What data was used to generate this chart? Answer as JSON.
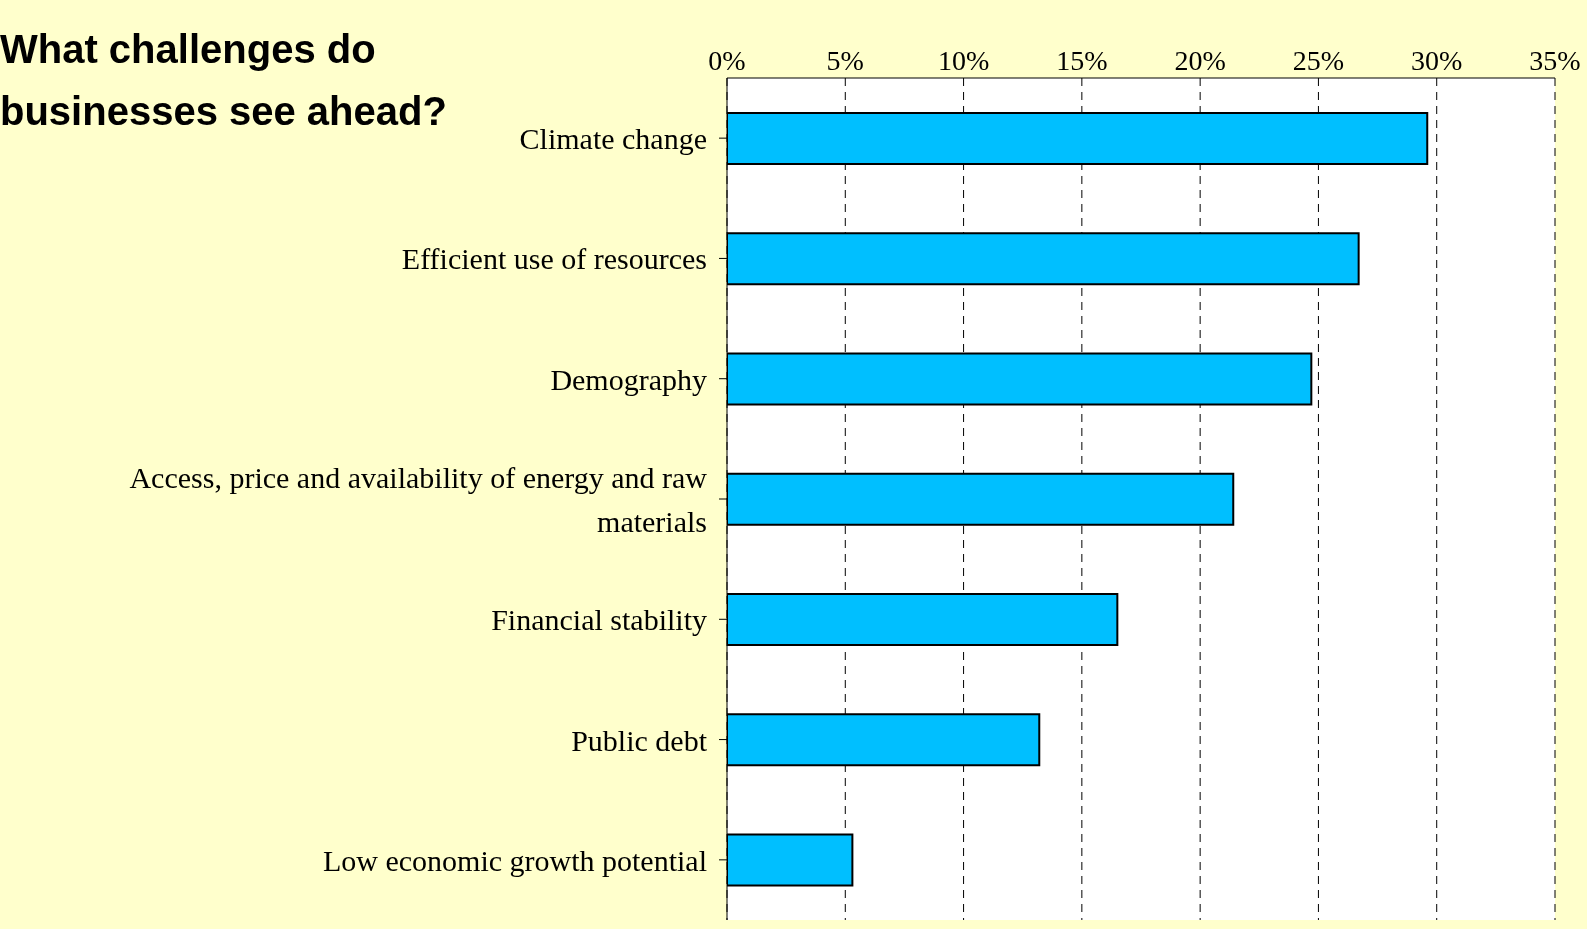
{
  "chart_data": {
    "type": "bar",
    "orientation": "horizontal",
    "title": "What challenges do businesses see ahead?",
    "categories": [
      "Climate change",
      "Efficient use of resources",
      "Demography",
      "Access, price and availability of energy and raw materials",
      "Financial stability",
      "Public debt",
      "Low economic growth potential"
    ],
    "values": [
      29.6,
      26.7,
      24.7,
      21.4,
      16.5,
      13.2,
      5.3
    ],
    "color": "#00bfff",
    "xlim": [
      0,
      35
    ],
    "xticks": [
      {
        "value": 0,
        "label": "0%"
      },
      {
        "value": 5,
        "label": "5%"
      },
      {
        "value": 10,
        "label": "10%"
      },
      {
        "value": 15,
        "label": "15%"
      },
      {
        "value": 20,
        "label": "20%"
      },
      {
        "value": 25,
        "label": "25%"
      },
      {
        "value": 30,
        "label": "30%"
      },
      {
        "value": 35,
        "label": "35%"
      }
    ],
    "grid": "x",
    "legend": false
  }
}
